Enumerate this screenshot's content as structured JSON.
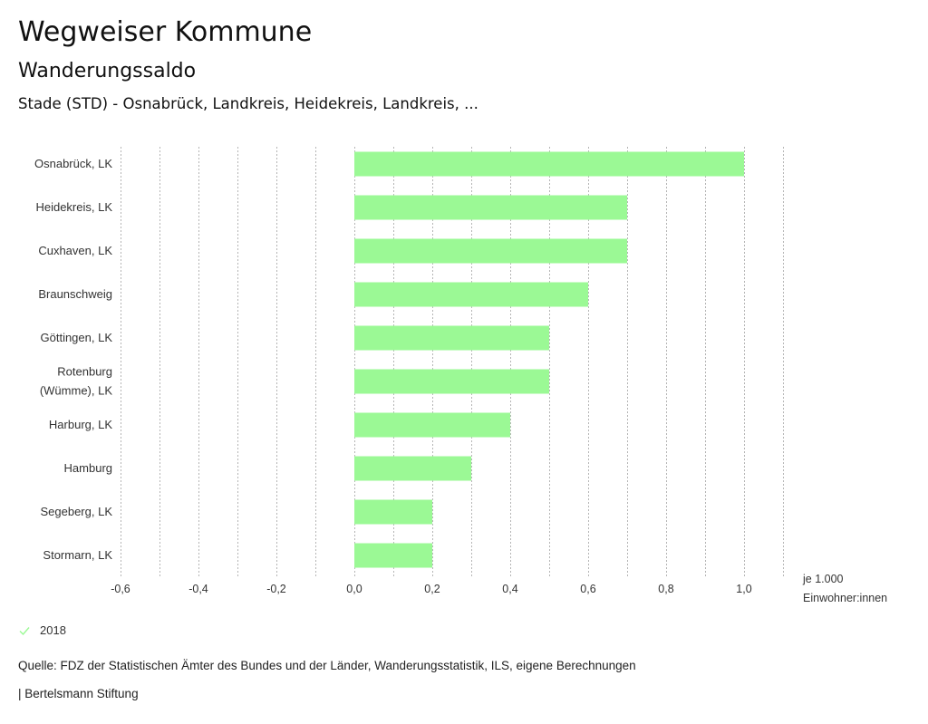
{
  "header": {
    "title": "Wegweiser Kommune",
    "subtitle": "Wanderungssaldo",
    "selection": "Stade (STD) - Osnabrück, Landkreis, Heidekreis, Landkreis, ..."
  },
  "colors": {
    "bar": "#9bf995",
    "grid": "#b5b5b5",
    "legend_check": "#9bf995"
  },
  "chart_data": {
    "type": "bar",
    "orientation": "horizontal",
    "title": "Wanderungssaldo",
    "xlabel": "je 1.000 Einwohner:innen",
    "xlabel_lines": [
      "je 1.000",
      "Einwohner:innen"
    ],
    "ylabel": "",
    "xlim": [
      -0.6,
      1.1
    ],
    "grid": true,
    "grid_step": 0.1,
    "x_ticks": [
      -0.6,
      -0.4,
      -0.2,
      0.0,
      0.2,
      0.4,
      0.6,
      0.8,
      1.0
    ],
    "x_tick_labels": [
      "-0,6",
      "-0,4",
      "-0,2",
      "0,0",
      "0,2",
      "0,4",
      "0,6",
      "0,8",
      "1,0"
    ],
    "categories": [
      [
        "Osnabrück, LK"
      ],
      [
        "Heidekreis, LK"
      ],
      [
        "Cuxhaven, LK"
      ],
      [
        "Braunschweig"
      ],
      [
        "Göttingen, LK"
      ],
      [
        "Rotenburg",
        "(Wümme), LK"
      ],
      [
        "Harburg, LK"
      ],
      [
        "Hamburg"
      ],
      [
        "Segeberg, LK"
      ],
      [
        "Stormarn, LK"
      ]
    ],
    "series": [
      {
        "name": "2018",
        "values": [
          1.0,
          0.7,
          0.7,
          0.6,
          0.5,
          0.5,
          0.4,
          0.3,
          0.2,
          0.2
        ]
      }
    ],
    "legend": {
      "position": "bottom-left",
      "entries": [
        "2018"
      ]
    }
  },
  "legend": {
    "label": "2018",
    "icon": "check-icon"
  },
  "footer": {
    "source": "Quelle: FDZ der Statistischen Ämter des Bundes und der Länder, Wanderungsstatistik, ILS, eigene Berechnungen",
    "credit": "| Bertelsmann Stiftung"
  }
}
